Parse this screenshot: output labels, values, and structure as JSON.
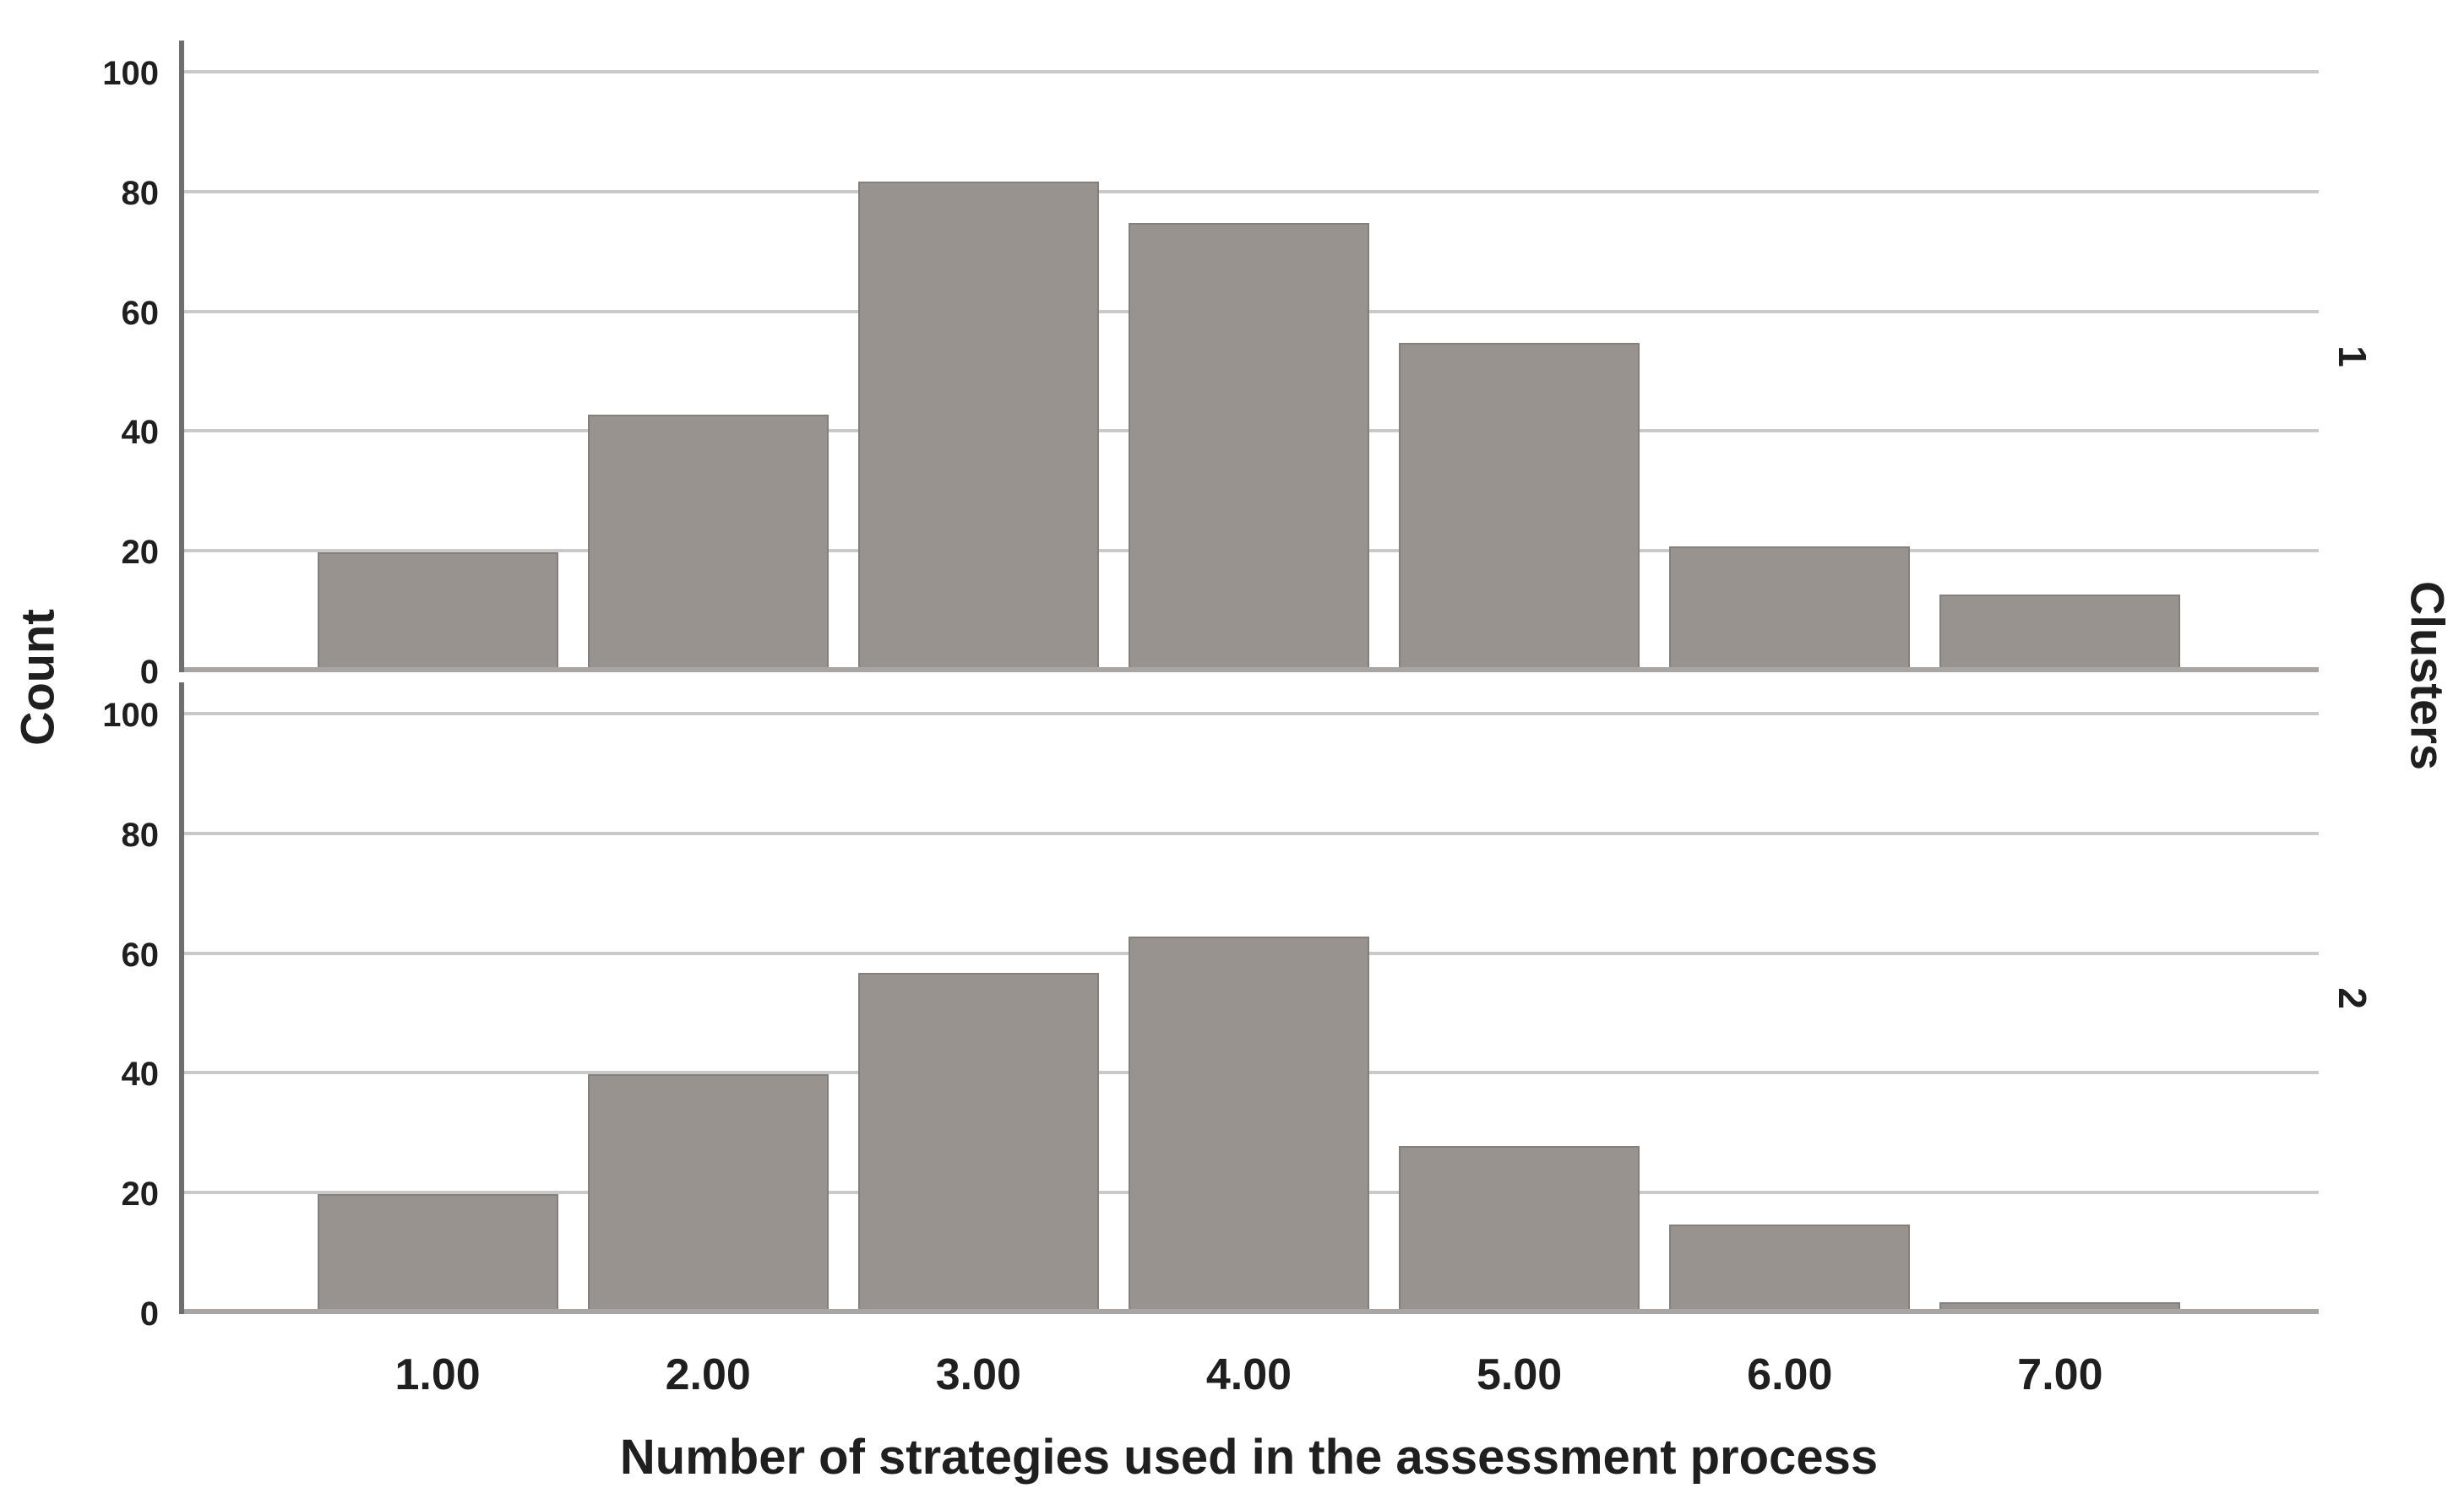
{
  "chart_data": {
    "type": "bar",
    "style": "SPSS paneled histogram, two vertically stacked panels sharing the x-axis",
    "xlabel": "Number of strategies used in the assessment process",
    "ylabel": "Count",
    "panel_axis_label": "Clusters",
    "categories": [
      "1.00",
      "2.00",
      "3.00",
      "4.00",
      "5.00",
      "6.00",
      "7.00"
    ],
    "series": [
      {
        "name": "1",
        "values": [
          20,
          43,
          82,
          75,
          55,
          21,
          13
        ]
      },
      {
        "name": "2",
        "values": [
          20,
          40,
          57,
          63,
          28,
          15,
          2
        ]
      }
    ],
    "y_ticks": [
      0,
      20,
      40,
      60,
      80,
      100
    ],
    "ylim": [
      0,
      105.5
    ],
    "grid": "horizontal",
    "legend": "none",
    "colors": {
      "bar": "#99938f",
      "bar_border": "#85807c",
      "gridline": "#c9c9c9",
      "axis_line": "#6e6e6e",
      "baseline": "#a9a5a3",
      "text": "#1f1f1f",
      "background": "#ffffff"
    }
  }
}
